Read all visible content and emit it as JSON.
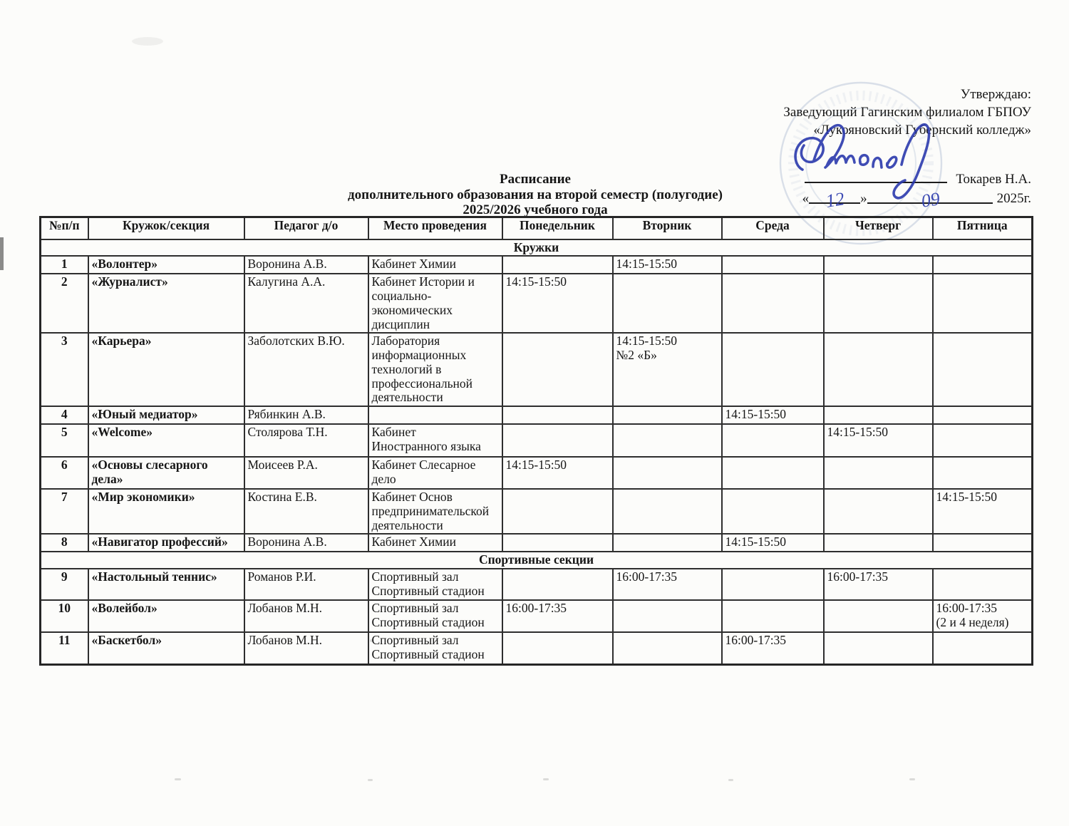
{
  "approval": {
    "line1": "Утверждаю:",
    "line2": "Заведующий Гагинским филиалом ГБПОУ",
    "line3": "«Лукояновский Губернский колледж»",
    "signer": "Токарев Н.А.",
    "quote_open": "«",
    "quote_close": "»",
    "date_day": "12",
    "date_month": "09",
    "date_year": "2025г."
  },
  "title": {
    "line1": "Расписание",
    "line2": "дополнительного образования на второй семестр (полугодие)",
    "line3": "2025/2026 учебного года"
  },
  "ink_color": "#2d3cae",
  "table": {
    "headers": [
      "№п/п",
      "Кружок/секция",
      "Педагог д/о",
      "Место проведения",
      "Понедельник",
      "Вторник",
      "Среда",
      "Четверг",
      "Пятница"
    ],
    "sections": [
      {
        "label": "Кружки",
        "rows": [
          {
            "num": "1",
            "club": "«Волонтер»",
            "teacher": "Воронина А.В.",
            "place": "Кабинет Химии",
            "mon": "",
            "tue": "14:15-15:50",
            "wed": "",
            "thu": "",
            "fri": ""
          },
          {
            "num": "2",
            "club": "«Журналист»",
            "teacher": "Калугина А.А.",
            "place": "Кабинет Истории и\nсоциально-\nэкономических\nдисциплин",
            "mon": "14:15-15:50",
            "tue": "",
            "wed": "",
            "thu": "",
            "fri": ""
          },
          {
            "num": "3",
            "club": "«Карьера»",
            "teacher": "Заболотских В.Ю.",
            "place": "Лаборатория\nинформационных\nтехнологий в\nпрофессиональной\nдеятельности",
            "mon": "",
            "tue": "14:15-15:50\n№2 «Б»",
            "wed": "",
            "thu": "",
            "fri": ""
          },
          {
            "num": "4",
            "club": "«Юный медиатор»",
            "teacher": "Рябинкин А.В.",
            "place": "",
            "mon": "",
            "tue": "",
            "wed": "14:15-15:50",
            "thu": "",
            "fri": ""
          },
          {
            "num": "5",
            "club": "«Welcome»",
            "teacher": "Столярова Т.Н.",
            "place": "Кабинет\nИностранного языка",
            "mon": "",
            "tue": "",
            "wed": "",
            "thu": "14:15-15:50",
            "fri": ""
          },
          {
            "num": "6",
            "club": "«Основы слесарного\nдела»",
            "teacher": "Моисеев Р.А.",
            "place": "Кабинет Слесарное\nдело",
            "mon": "14:15-15:50",
            "tue": "",
            "wed": "",
            "thu": "",
            "fri": ""
          },
          {
            "num": "7",
            "club": "«Мир экономики»",
            "teacher": "Костина Е.В.",
            "place": "Кабинет Основ\nпредпринимательской\nдеятельности",
            "mon": "",
            "tue": "",
            "wed": "",
            "thu": "",
            "fri": "14:15-15:50"
          },
          {
            "num": "8",
            "club": "«Навигатор профессий»",
            "teacher": "Воронина А.В.",
            "place": "Кабинет Химии",
            "mon": "",
            "tue": "",
            "wed": "14:15-15:50",
            "thu": "",
            "fri": ""
          }
        ]
      },
      {
        "label": "Спортивные секции",
        "rows": [
          {
            "num": "9",
            "club": "«Настольный теннис»",
            "teacher": "Романов Р.И.",
            "place": "Спортивный зал\nСпортивный стадион",
            "mon": "",
            "tue": "16:00-17:35",
            "wed": "",
            "thu": "16:00-17:35",
            "fri": ""
          },
          {
            "num": "10",
            "club": "«Волейбол»",
            "teacher": "Лобанов М.Н.",
            "place": "Спортивный зал\nСпортивный стадион",
            "mon": "16:00-17:35",
            "tue": "",
            "wed": "",
            "thu": "",
            "fri": "16:00-17:35\n(2 и 4 неделя)"
          },
          {
            "num": "11",
            "club": "«Баскетбол»",
            "teacher": "Лобанов М.Н.",
            "place": "Спортивный зал\nСпортивный стадион",
            "mon": "",
            "tue": "",
            "wed": "16:00-17:35",
            "thu": "",
            "fri": ""
          }
        ]
      }
    ]
  }
}
